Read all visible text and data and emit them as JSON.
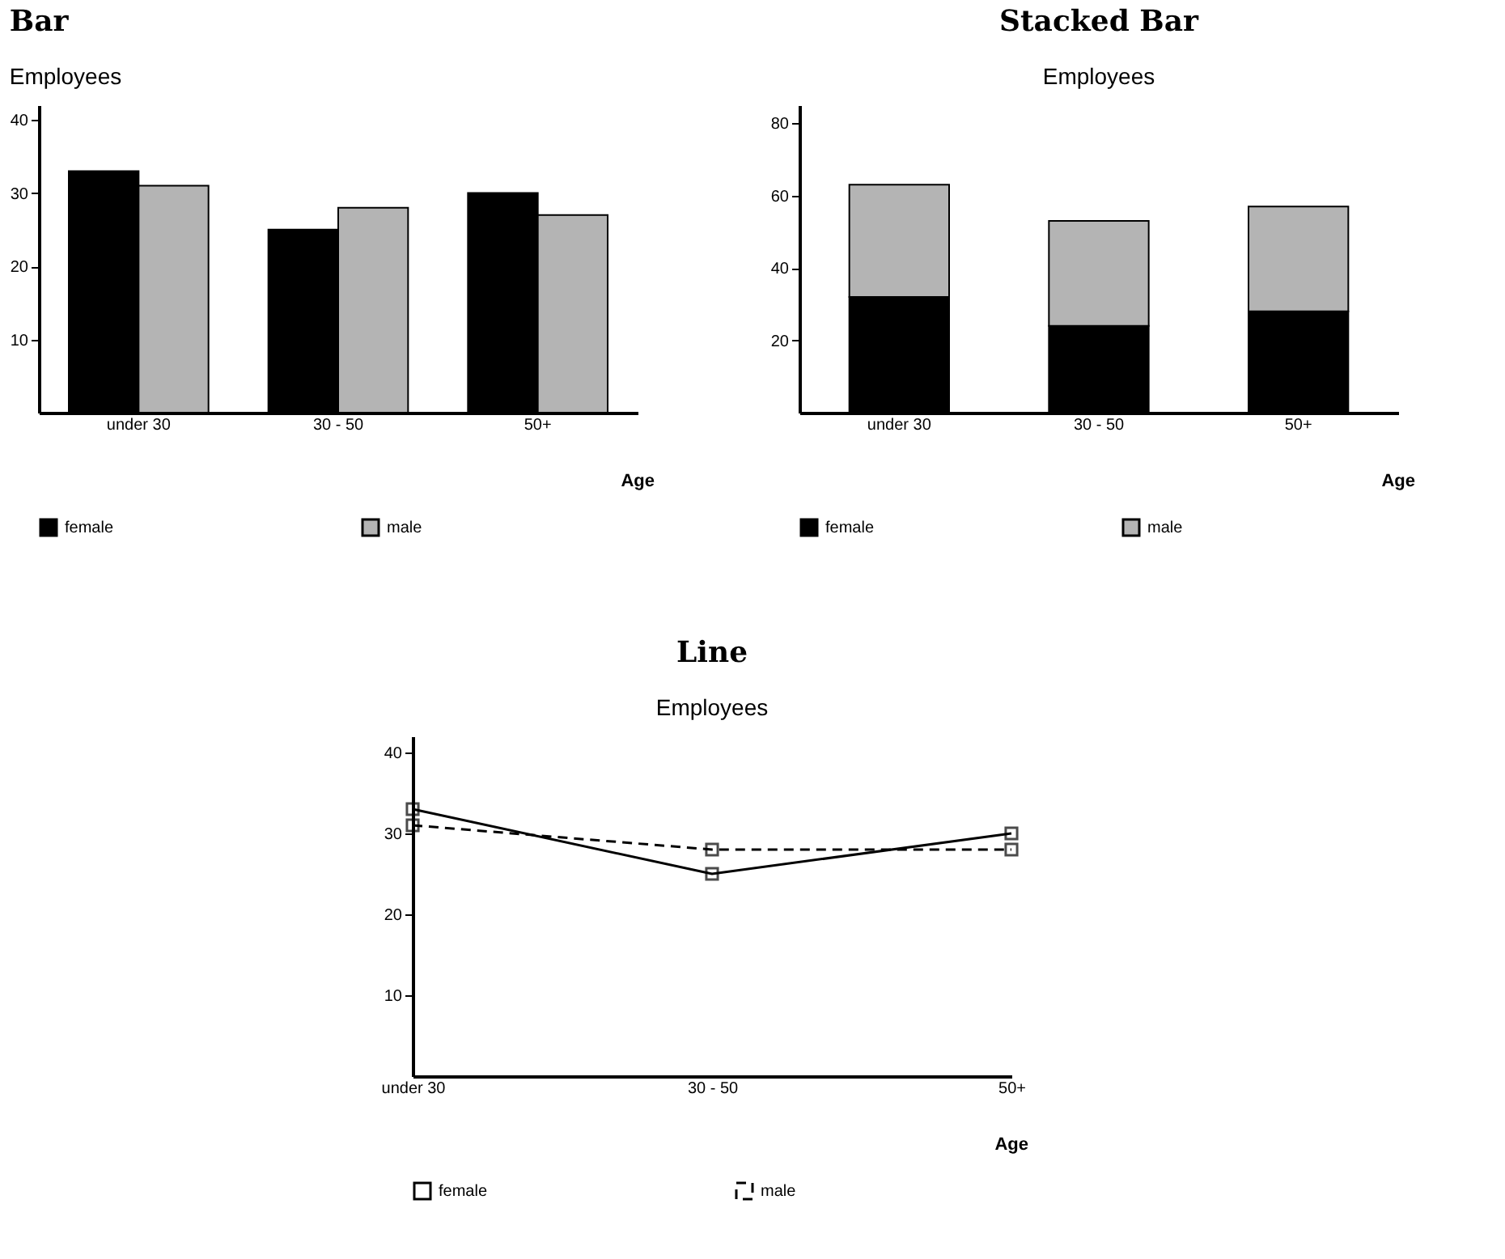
{
  "chart_data": [
    {
      "type": "bar",
      "title": "Bar",
      "subtitle": "Employees",
      "xlabel": "Age",
      "categories": [
        "under 30",
        "30 - 50",
        "50+"
      ],
      "series": [
        {
          "name": "female",
          "color": "#000000",
          "values": [
            33,
            25,
            30
          ]
        },
        {
          "name": "male",
          "color": "#b4b4b4",
          "values": [
            31,
            28,
            27
          ]
        }
      ],
      "ylim": [
        0,
        42
      ],
      "yticks": [
        10,
        20,
        30,
        40
      ],
      "grid": false,
      "legend": "bottom"
    },
    {
      "type": "bar",
      "stacked": true,
      "title": "Stacked Bar",
      "subtitle": "Employees",
      "xlabel": "Age",
      "categories": [
        "under 30",
        "30 - 50",
        "50+"
      ],
      "series": [
        {
          "name": "female",
          "color": "#000000",
          "values": [
            32,
            24,
            28
          ]
        },
        {
          "name": "male",
          "color": "#b4b4b4",
          "values": [
            31,
            29,
            29
          ]
        }
      ],
      "ylim": [
        0,
        85
      ],
      "yticks": [
        20,
        40,
        60,
        80
      ],
      "grid": false,
      "legend": "bottom"
    },
    {
      "type": "line",
      "title": "Line",
      "subtitle": "Employees",
      "xlabel": "Age",
      "categories": [
        "under 30",
        "30 - 50",
        "50+"
      ],
      "series": [
        {
          "name": "female",
          "color": "#000000",
          "values": [
            33,
            25,
            30
          ],
          "line_style": "solid"
        },
        {
          "name": "male",
          "color": "#000000",
          "values": [
            31,
            28,
            28
          ],
          "line_style": "dashed"
        }
      ],
      "ylim": [
        0,
        42
      ],
      "yticks": [
        10,
        20,
        30,
        40
      ],
      "grid": false,
      "legend": "bottom",
      "marker": "square"
    }
  ]
}
